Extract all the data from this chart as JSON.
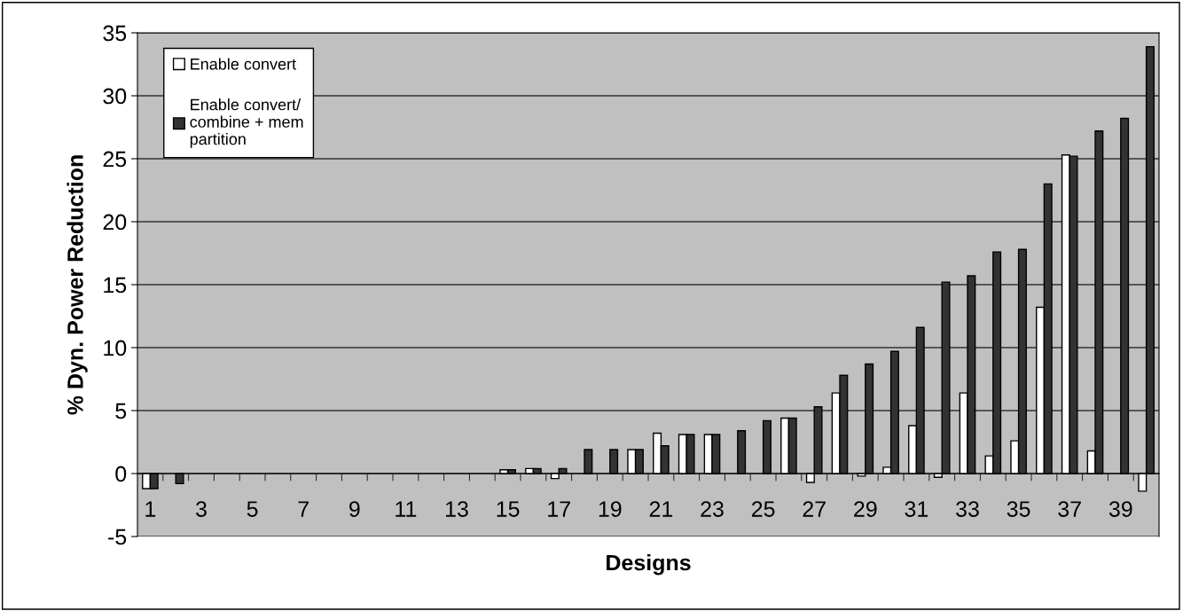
{
  "chart_data": {
    "type": "bar",
    "xlabel": "Designs",
    "ylabel": "% Dyn. Power Reduction",
    "categories": [
      "1",
      null,
      "3",
      null,
      "5",
      null,
      "7",
      null,
      "9",
      null,
      "11",
      null,
      "13",
      null,
      "15",
      null,
      "17",
      null,
      "19",
      null,
      "21",
      null,
      "23",
      null,
      "25",
      null,
      "27",
      null,
      "29",
      null,
      "31",
      null,
      "33",
      null,
      "35",
      null,
      "37",
      null,
      "39",
      null
    ],
    "series": [
      {
        "name": "Enable convert",
        "color": "#ffffff",
        "values": [
          -1.2,
          null,
          null,
          null,
          null,
          null,
          null,
          null,
          null,
          null,
          null,
          null,
          null,
          null,
          0.3,
          0.4,
          -0.4,
          null,
          null,
          1.9,
          3.2,
          3.1,
          3.1,
          null,
          null,
          4.4,
          -0.7,
          6.4,
          -0.2,
          0.5,
          3.8,
          -0.3,
          6.4,
          1.4,
          2.6,
          13.2,
          25.3,
          1.8,
          null,
          -1.4
        ]
      },
      {
        "name": "Enable convert/\ncombine + mem\npartition",
        "color": "#333333",
        "values": [
          -1.2,
          -0.8,
          null,
          null,
          null,
          null,
          null,
          null,
          null,
          null,
          null,
          null,
          null,
          null,
          0.3,
          0.4,
          0.4,
          1.9,
          1.9,
          1.9,
          2.2,
          3.1,
          3.1,
          3.4,
          4.2,
          4.4,
          5.3,
          7.8,
          8.7,
          9.7,
          11.6,
          15.2,
          15.7,
          17.6,
          17.8,
          23.0,
          25.2,
          27.2,
          28.2,
          33.9
        ]
      }
    ],
    "ylim": [
      -5,
      35
    ],
    "yticks": [
      -5,
      0,
      5,
      10,
      15,
      20,
      25,
      30,
      35
    ],
    "grid": "y",
    "legend": "top left"
  }
}
